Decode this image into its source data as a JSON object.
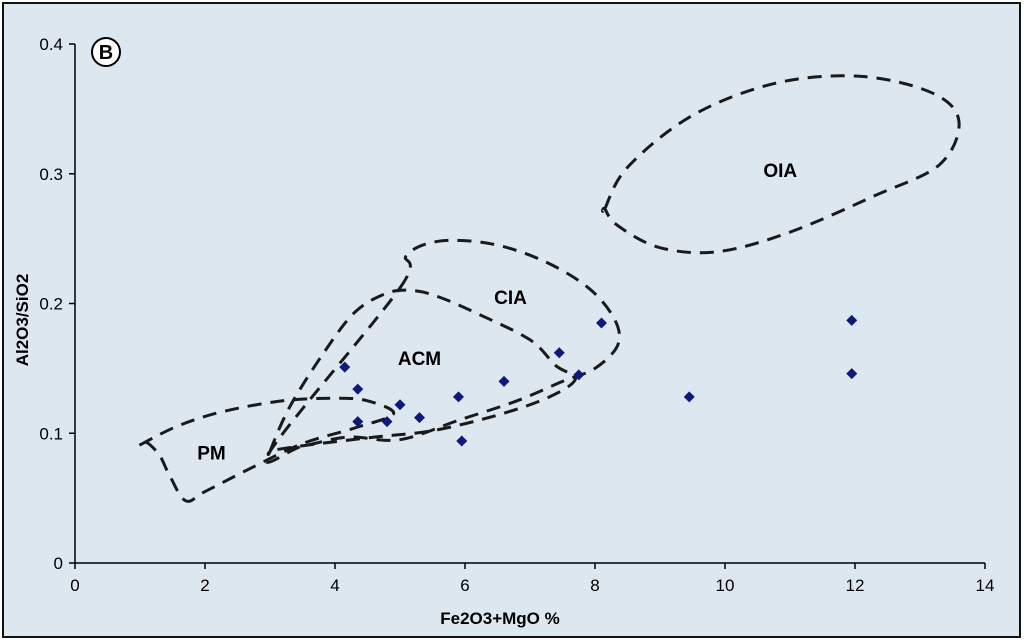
{
  "chart_data": {
    "type": "scatter",
    "title": "",
    "panel_label": "B",
    "xlabel": "Fe2O3+MgO %",
    "ylabel": "Al2O3/SiO2",
    "xlim": [
      0,
      14
    ],
    "ylim": [
      0,
      0.4
    ],
    "x_ticks": [
      0,
      2,
      4,
      6,
      8,
      10,
      12,
      14
    ],
    "y_ticks": [
      0,
      0.1,
      0.2,
      0.3,
      0.4
    ],
    "x_tick_labels": [
      "0",
      "2",
      "4",
      "6",
      "8",
      "10",
      "12",
      "14"
    ],
    "y_tick_labels": [
      "0",
      "0.1",
      "0.2",
      "0.3",
      "0.4"
    ],
    "grid": false,
    "legend": "none",
    "colors": {
      "background": "#dde7f0",
      "point": "#0d1a7a",
      "boundary": "#1a1a1a"
    },
    "series": [
      {
        "marker": "diamond",
        "x": [
          4.15,
          4.35,
          4.35,
          4.8,
          5.0,
          5.3,
          5.9,
          5.95,
          6.6,
          7.45,
          7.75,
          8.1,
          9.45,
          11.95,
          11.95
        ],
        "y": [
          0.151,
          0.134,
          0.109,
          0.109,
          0.122,
          0.112,
          0.128,
          0.094,
          0.14,
          0.162,
          0.145,
          0.185,
          0.128,
          0.187,
          0.146
        ]
      }
    ],
    "regions": [
      {
        "label": "PM",
        "label_pos": [
          2.1,
          0.085
        ],
        "outline": [
          [
            1.0,
            0.091
          ],
          [
            1.6,
            0.106
          ],
          [
            2.3,
            0.117
          ],
          [
            3.2,
            0.125
          ],
          [
            4.0,
            0.127
          ],
          [
            4.5,
            0.125
          ],
          [
            4.9,
            0.115
          ],
          [
            4.3,
            0.104
          ],
          [
            3.5,
            0.092
          ],
          [
            2.7,
            0.073
          ],
          [
            2.0,
            0.055
          ],
          [
            1.7,
            0.048
          ],
          [
            1.45,
            0.068
          ],
          [
            1.3,
            0.083
          ],
          [
            1.1,
            0.093
          ]
        ]
      },
      {
        "label": "ACM",
        "label_pos": [
          5.3,
          0.158
        ],
        "outline": [
          [
            3.0,
            0.086
          ],
          [
            3.3,
            0.12
          ],
          [
            3.8,
            0.16
          ],
          [
            4.3,
            0.193
          ],
          [
            4.8,
            0.208
          ],
          [
            5.2,
            0.21
          ],
          [
            5.6,
            0.205
          ],
          [
            6.2,
            0.192
          ],
          [
            7.0,
            0.172
          ],
          [
            7.4,
            0.152
          ],
          [
            7.7,
            0.142
          ],
          [
            7.3,
            0.128
          ],
          [
            6.5,
            0.114
          ],
          [
            5.5,
            0.102
          ],
          [
            4.6,
            0.097
          ],
          [
            3.6,
            0.091
          ],
          [
            3.05,
            0.087
          ]
        ]
      },
      {
        "label": "CIA",
        "label_pos": [
          6.7,
          0.205
        ],
        "outline": [
          [
            5.0,
            0.212
          ],
          [
            5.1,
            0.237
          ],
          [
            5.6,
            0.248
          ],
          [
            6.4,
            0.246
          ],
          [
            7.2,
            0.233
          ],
          [
            7.9,
            0.212
          ],
          [
            8.3,
            0.188
          ],
          [
            8.35,
            0.168
          ],
          [
            8.0,
            0.15
          ],
          [
            7.5,
            0.14
          ],
          [
            6.8,
            0.125
          ],
          [
            5.9,
            0.11
          ],
          [
            5.0,
            0.095
          ],
          [
            4.2,
            0.097
          ],
          [
            3.5,
            0.09
          ],
          [
            3.0,
            0.086
          ]
        ]
      },
      {
        "label": "OIA",
        "label_pos": [
          10.85,
          0.303
        ],
        "outline": [
          [
            8.15,
            0.273
          ],
          [
            8.5,
            0.305
          ],
          [
            9.5,
            0.345
          ],
          [
            10.8,
            0.37
          ],
          [
            12.1,
            0.375
          ],
          [
            13.2,
            0.362
          ],
          [
            13.6,
            0.34
          ],
          [
            13.3,
            0.307
          ],
          [
            12.3,
            0.283
          ],
          [
            11.0,
            0.255
          ],
          [
            9.9,
            0.24
          ],
          [
            9.0,
            0.243
          ],
          [
            8.35,
            0.26
          ],
          [
            8.15,
            0.273
          ]
        ]
      }
    ]
  }
}
